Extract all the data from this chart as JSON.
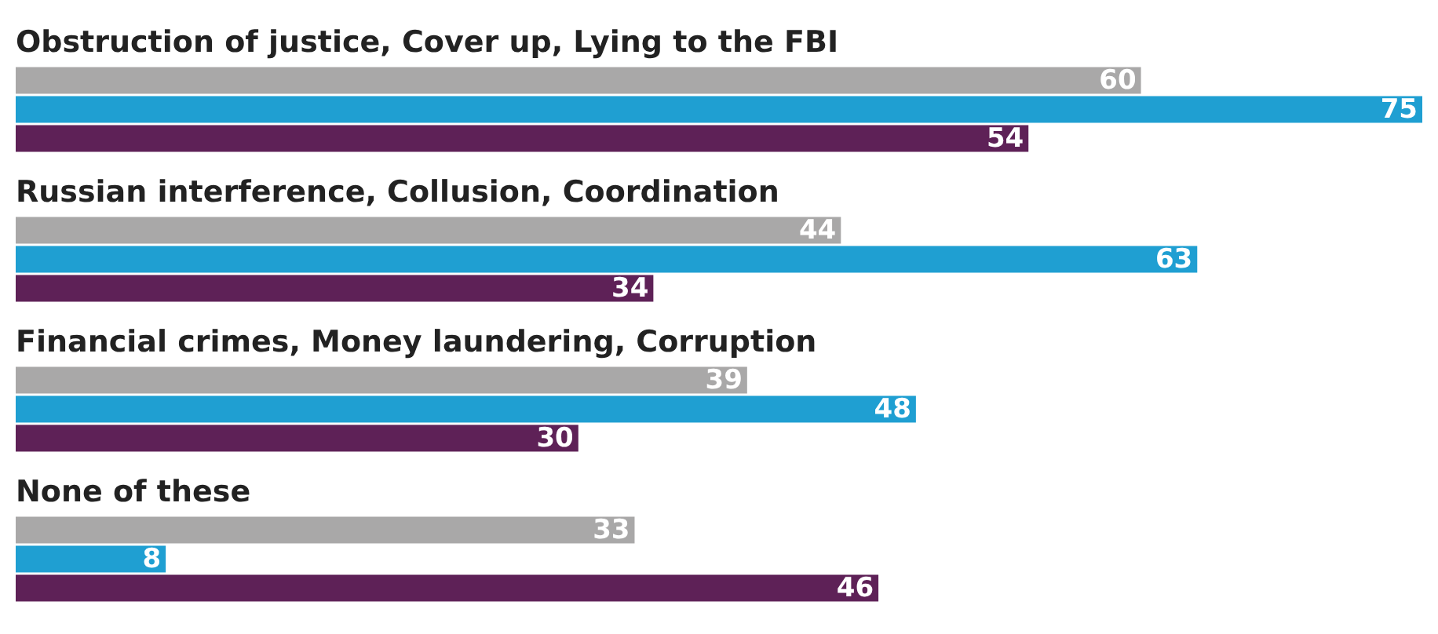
{
  "chart_data": {
    "type": "bar",
    "orientation": "horizontal",
    "categories": [
      "Obstruction of justice, Cover up, Lying to the FBI",
      "Russian interference, Collusion, Coordination",
      "Financial crimes, Money laundering, Corruption",
      "None of these"
    ],
    "series": [
      {
        "color": "#a9a8a8",
        "values": [
          60,
          44,
          39,
          33
        ]
      },
      {
        "color": "#1f9fd2",
        "values": [
          75,
          63,
          48,
          8
        ]
      },
      {
        "color": "#5e2157",
        "values": [
          54,
          34,
          30,
          46
        ]
      }
    ],
    "data_labels": true,
    "legend": false
  }
}
